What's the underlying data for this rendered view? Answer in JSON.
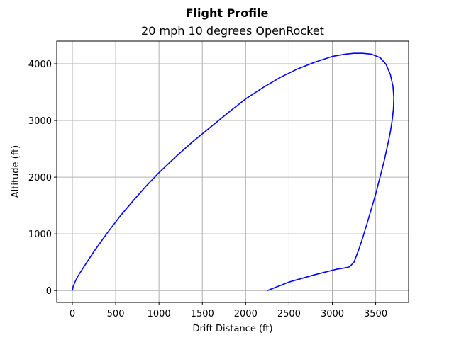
{
  "figure": {
    "suptitle": "Flight Profile",
    "title": "20 mph 10 degrees OpenRocket"
  },
  "colors": {
    "series": "#0000ff",
    "grid": "#b0b0b0",
    "background": "#ffffff"
  },
  "chart_data": {
    "type": "line",
    "title": "20 mph 10 degrees OpenRocket",
    "xlabel": "Drift Distance (ft)",
    "ylabel": "Altitude (ft)",
    "xlim": [
      -180,
      3880
    ],
    "ylim": [
      -210,
      4400
    ],
    "xticks": [
      0,
      500,
      1000,
      1500,
      2000,
      2500,
      3000,
      3500
    ],
    "yticks": [
      0,
      1000,
      2000,
      3000,
      4000
    ],
    "grid": true,
    "series": [
      {
        "x": [
          0,
          10,
          30,
          60,
          100,
          160,
          250,
          400,
          550,
          700,
          850,
          1000,
          1200,
          1400,
          1600,
          1800,
          2000,
          2200,
          2400,
          2600,
          2800,
          3000,
          3150,
          3250,
          3350,
          3450,
          3550,
          3620,
          3670,
          3700,
          3710,
          3705,
          3690,
          3670,
          3640,
          3600,
          3550,
          3500,
          3450,
          3400,
          3350,
          3300,
          3250,
          3200,
          3150,
          3110,
          3085,
          3060,
          2800,
          2500,
          2250
        ],
        "y": [
          0,
          70,
          150,
          240,
          340,
          480,
          690,
          1010,
          1310,
          1580,
          1840,
          2080,
          2370,
          2640,
          2890,
          3140,
          3380,
          3580,
          3760,
          3910,
          4030,
          4130,
          4170,
          4185,
          4185,
          4170,
          4110,
          3990,
          3810,
          3600,
          3400,
          3200,
          3000,
          2800,
          2580,
          2300,
          2000,
          1700,
          1440,
          1180,
          930,
          700,
          500,
          420,
          400,
          390,
          385,
          380,
          280,
          150,
          0
        ]
      }
    ]
  }
}
